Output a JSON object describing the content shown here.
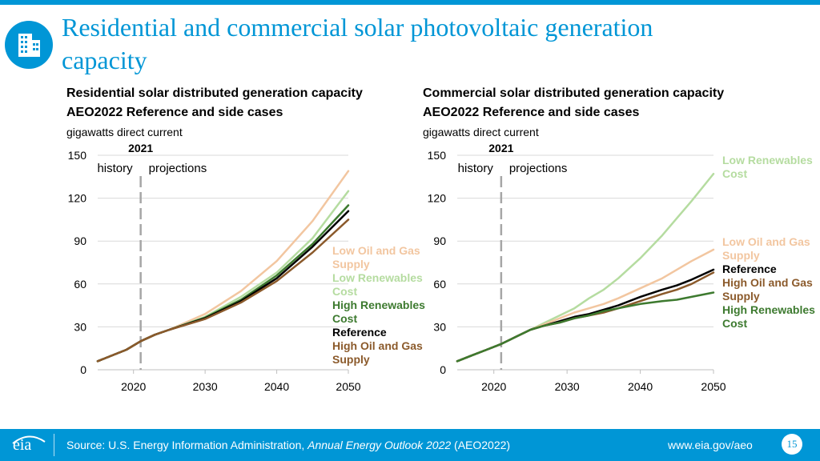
{
  "slide": {
    "title": "Residential and commercial solar photovoltaic generation capacity",
    "icon": "building-icon",
    "page_number": "15"
  },
  "footer": {
    "logo_text": "eia",
    "source_prefix": "Source: U.S. Energy Information Administration, ",
    "source_italic": "Annual Energy Outlook 2022",
    "source_suffix": " (AEO2022)",
    "url": "www.eia.gov/aeo",
    "brand_color": "#0096d6"
  },
  "panels": [
    {
      "title_line1": "Residential solar distributed generation capacity",
      "title_line2": "AEO2022 Reference and side cases",
      "unit": "gigawatts direct current"
    },
    {
      "title_line1": "Commercial solar distributed generation capacity",
      "title_line2": "AEO2022 Reference and side cases",
      "unit": "gigawatts direct current"
    }
  ],
  "chart_data": [
    {
      "type": "line",
      "title": "Residential solar distributed generation capacity",
      "subtitle": "AEO2022 Reference and side cases",
      "ylabel": "gigawatts direct current",
      "xlim": [
        2015,
        2050
      ],
      "ylim": [
        0,
        150
      ],
      "xticks": [
        "2020",
        "2030",
        "2040",
        "2050"
      ],
      "yticks": [
        "0",
        "30",
        "60",
        "90",
        "120",
        "150"
      ],
      "divider": {
        "year": 2021,
        "label": "2021",
        "left_label": "history",
        "right_label": "projections"
      },
      "x": [
        2015,
        2017,
        2019,
        2021,
        2023,
        2025,
        2030,
        2035,
        2040,
        2045,
        2050
      ],
      "series": [
        {
          "name": "Low Oil and Gas Supply",
          "label_lines": [
            "Low Oil and Gas",
            "Supply"
          ],
          "color": "#f2c6a0",
          "values": [
            6,
            10,
            14,
            20,
            24.5,
            28,
            39,
            55,
            76,
            104,
            139
          ]
        },
        {
          "name": "Low Renewables Cost",
          "label_lines": [
            "Low Renewables",
            "Cost"
          ],
          "color": "#b5dca0",
          "values": [
            6,
            10,
            14,
            20,
            24.5,
            28,
            37,
            51,
            68,
            92,
            125
          ]
        },
        {
          "name": "High Renewables Cost",
          "label_lines": [
            "High Renewables",
            "Cost"
          ],
          "color": "#3d7a2f",
          "values": [
            6,
            10,
            14,
            20,
            24.5,
            28,
            36.5,
            49,
            66,
            88,
            115
          ]
        },
        {
          "name": "Reference",
          "label_lines": [
            "Reference"
          ],
          "color": "#000000",
          "values": [
            6,
            10,
            14,
            20,
            24.5,
            28,
            36,
            48,
            64,
            86,
            111
          ]
        },
        {
          "name": "High Oil and Gas Supply",
          "label_lines": [
            "High Oil and Gas",
            "Supply"
          ],
          "color": "#8b5a2b",
          "values": [
            6,
            10,
            14,
            20,
            24.5,
            28,
            35.5,
            47,
            62,
            82,
            105
          ]
        }
      ]
    },
    {
      "type": "line",
      "title": "Commercial solar distributed generation capacity",
      "subtitle": "AEO2022 Reference and side cases",
      "ylabel": "gigawatts direct current",
      "xlim": [
        2015,
        2050
      ],
      "ylim": [
        0,
        150
      ],
      "xticks": [
        "2020",
        "2030",
        "2040",
        "2050"
      ],
      "yticks": [
        "0",
        "30",
        "60",
        "90",
        "120",
        "150"
      ],
      "divider": {
        "year": 2021,
        "label": "2021",
        "left_label": "history",
        "right_label": "projections"
      },
      "x": [
        2015,
        2017,
        2019,
        2021,
        2023,
        2025,
        2027,
        2029,
        2031,
        2033,
        2035,
        2037,
        2040,
        2043,
        2045,
        2047,
        2050
      ],
      "series": [
        {
          "name": "Low Renewables Cost",
          "label_lines": [
            "Low Renewables",
            "Cost"
          ],
          "color": "#b5dca0",
          "values": [
            6,
            10,
            14,
            18,
            23,
            28,
            33,
            38,
            43,
            50,
            56,
            64,
            78,
            94,
            106,
            118,
            137
          ]
        },
        {
          "name": "Low Oil and Gas Supply",
          "label_lines": [
            "Low Oil and Gas",
            "Supply"
          ],
          "color": "#f2c6a0",
          "values": [
            6,
            10,
            14,
            18,
            23,
            28,
            32,
            36,
            40,
            43,
            46,
            50,
            57,
            64,
            70,
            76,
            84
          ]
        },
        {
          "name": "Reference",
          "label_lines": [
            "Reference"
          ],
          "color": "#000000",
          "values": [
            6,
            10,
            14,
            18,
            23,
            28,
            31,
            34,
            37,
            39,
            42,
            45,
            51,
            56,
            59,
            63,
            70
          ]
        },
        {
          "name": "High Oil and Gas Supply",
          "label_lines": [
            "High Oil and Gas",
            "Supply"
          ],
          "color": "#8b5a2b",
          "values": [
            6,
            10,
            14,
            18,
            23,
            28,
            31,
            33,
            36,
            38,
            40,
            43,
            48,
            53,
            56,
            60,
            68
          ]
        },
        {
          "name": "High Renewables Cost",
          "label_lines": [
            "High Renewables",
            "Cost"
          ],
          "color": "#3d7a2f",
          "values": [
            6,
            10,
            14,
            18,
            23,
            28,
            31,
            33,
            36,
            38,
            41,
            43,
            46,
            48,
            49,
            51,
            54
          ]
        }
      ]
    }
  ]
}
